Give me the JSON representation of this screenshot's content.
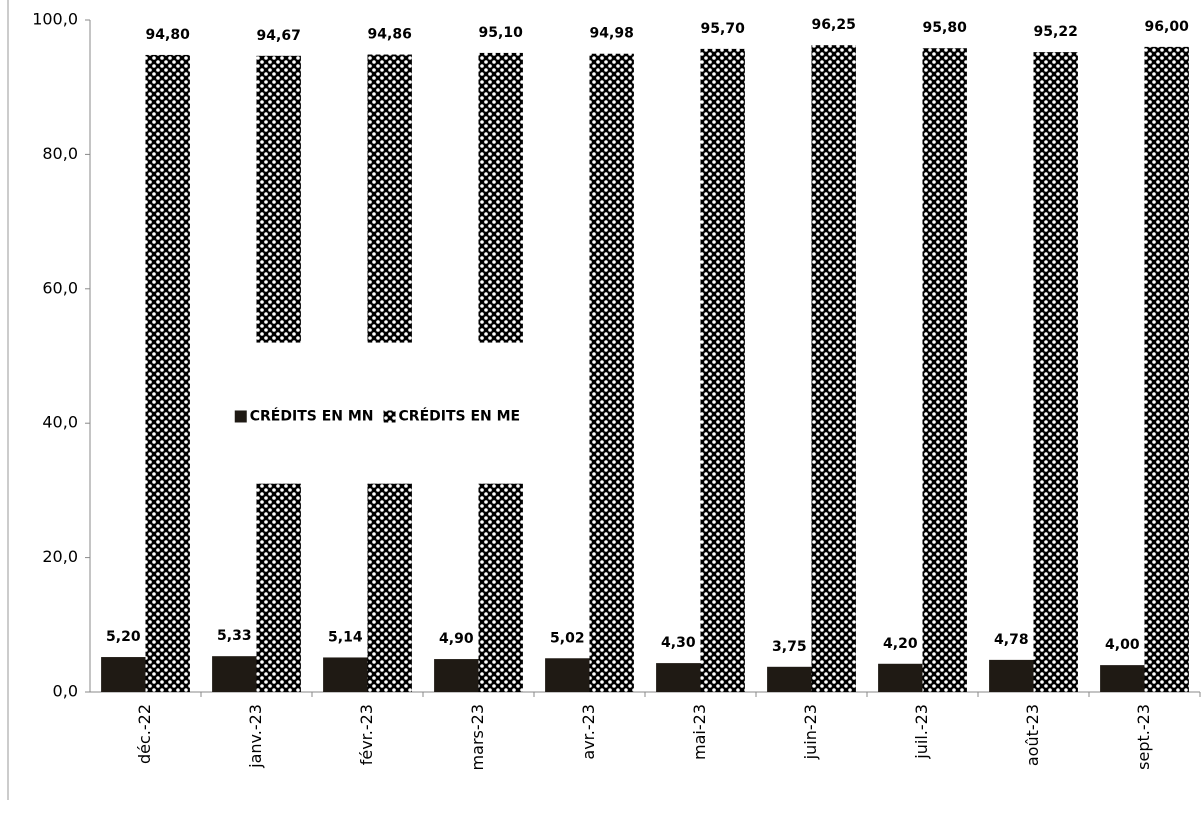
{
  "chart_data": {
    "type": "bar",
    "categories": [
      "déc.-22",
      "janv.-23",
      "févr.-23",
      "mars-23",
      "avr.-23",
      "mai-23",
      "juin-23",
      "juil.-23",
      "août-23",
      "sept.-23"
    ],
    "series": [
      {
        "name": "CRÉDITS EN MN",
        "color": "#1f1a14",
        "values": [
          5.2,
          5.33,
          5.14,
          4.9,
          5.02,
          4.3,
          3.75,
          4.2,
          4.78,
          4.0
        ],
        "value_labels": [
          "5,20",
          "5,33",
          "5,14",
          "4,90",
          "5,02",
          "4,30",
          "3,75",
          "4,20",
          "4,78",
          "4,00"
        ]
      },
      {
        "name": "CRÉDITS EN ME",
        "color": "#000000",
        "pattern": "dots",
        "values": [
          94.8,
          94.67,
          94.86,
          95.1,
          94.98,
          95.7,
          96.25,
          95.8,
          95.22,
          96.0
        ],
        "value_labels": [
          "94,80",
          "94,67",
          "94,86",
          "95,10",
          "94,98",
          "95,70",
          "96,25",
          "95,80",
          "95,22",
          "96,00"
        ]
      }
    ],
    "ylim": [
      0,
      100
    ],
    "yticks": [
      {
        "value": 0,
        "label": "0,0"
      },
      {
        "value": 20,
        "label": "20,0"
      },
      {
        "value": 40,
        "label": "40,0"
      },
      {
        "value": 60,
        "label": "60,0"
      },
      {
        "value": 80,
        "label": "80,0"
      },
      {
        "value": 100,
        "label": "100,0"
      }
    ],
    "grid": false,
    "legend": "center"
  }
}
